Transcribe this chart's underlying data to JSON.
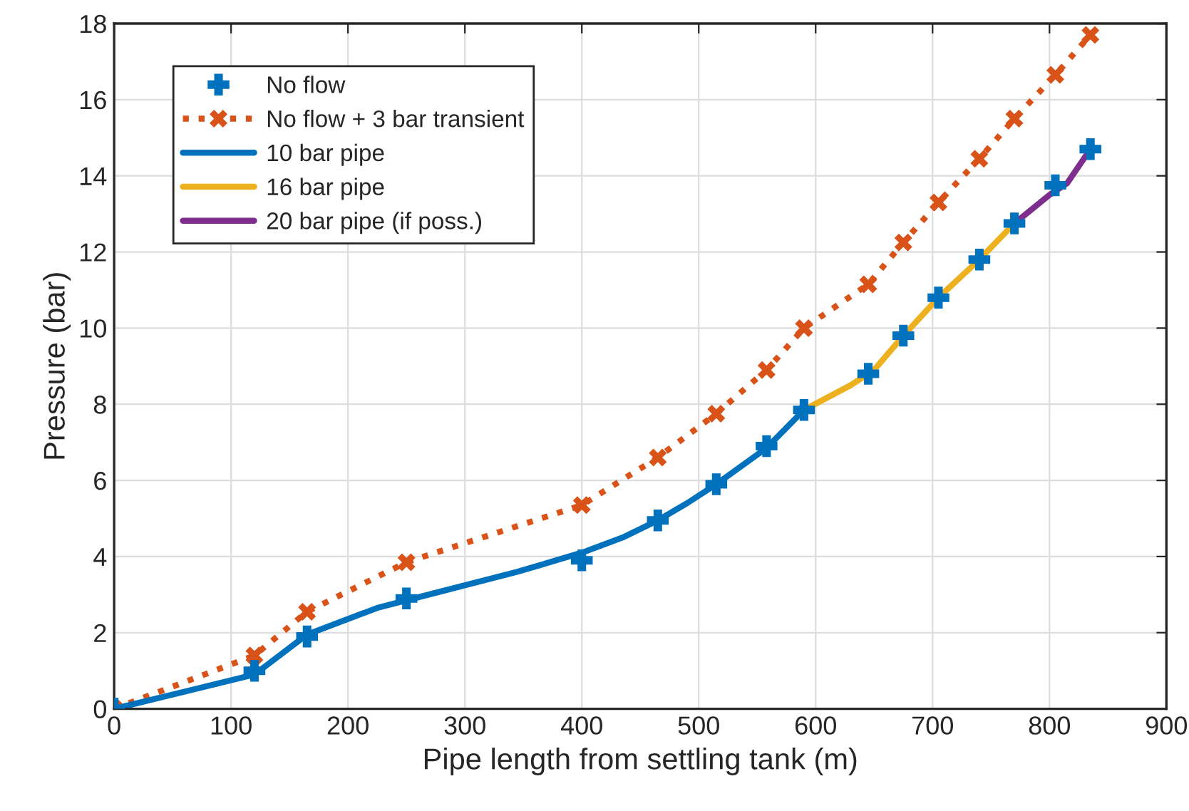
{
  "chart_data": {
    "type": "line",
    "xlabel": "Pipe length from settling tank (m)",
    "ylabel": "Pressure (bar)",
    "xlim": [
      0,
      900
    ],
    "xticks": [
      0,
      100,
      200,
      300,
      400,
      500,
      600,
      700,
      800,
      900
    ],
    "ylim": [
      0,
      18
    ],
    "yticks": [
      0,
      2,
      4,
      6,
      8,
      10,
      12,
      14,
      16,
      18
    ],
    "grid": true,
    "legend": "top left",
    "series": [
      {
        "name": "No flow",
        "type": "scatter",
        "marker": "plus",
        "color": "#0072bd",
        "x": [
          0,
          120,
          165,
          250,
          400,
          465,
          515,
          558,
          590,
          645,
          675,
          705,
          740,
          770,
          805,
          835
        ],
        "values": [
          0,
          1.0,
          1.9,
          2.9,
          3.9,
          4.95,
          5.9,
          6.9,
          7.85,
          8.8,
          9.8,
          10.8,
          11.8,
          12.75,
          13.75,
          14.7
        ]
      },
      {
        "name": "No flow + 3 bar transient",
        "marker": "cross",
        "line_style": "dotted",
        "color": "#d95319",
        "x": [
          0,
          120,
          165,
          250,
          400,
          465,
          515,
          558,
          590,
          645,
          675,
          705,
          740,
          770,
          805,
          835
        ],
        "values": [
          0,
          1.4,
          2.55,
          3.85,
          5.35,
          6.6,
          7.75,
          8.9,
          10.0,
          11.15,
          12.25,
          13.3,
          14.45,
          15.5,
          16.65,
          17.7
        ]
      },
      {
        "name": "10 bar pipe",
        "marker": "none",
        "line_style": "solid",
        "color": "#0072bd",
        "x": [
          0,
          120,
          165,
          225,
          250,
          345,
          400,
          435,
          465,
          490,
          515,
          558,
          590
        ],
        "values": [
          0,
          0.9,
          1.95,
          2.65,
          2.85,
          3.6,
          4.1,
          4.5,
          4.95,
          5.4,
          5.9,
          6.85,
          7.85
        ]
      },
      {
        "name": "16 bar pipe",
        "marker": "none",
        "line_style": "solid",
        "color": "#edb120",
        "x": [
          590,
          630,
          650,
          675,
          705,
          740,
          770
        ],
        "values": [
          7.85,
          8.5,
          8.9,
          9.8,
          10.8,
          11.8,
          12.75
        ]
      },
      {
        "name": "20 bar pipe (if poss.)",
        "marker": "none",
        "line_style": "solid",
        "color": "#7e2f8e",
        "x": [
          770,
          800,
          815,
          835
        ],
        "values": [
          12.75,
          13.5,
          13.8,
          14.7
        ]
      }
    ]
  }
}
